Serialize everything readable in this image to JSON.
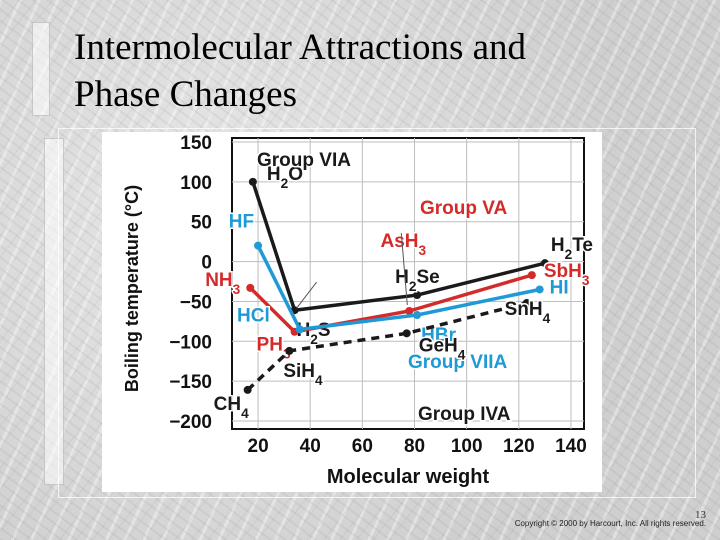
{
  "slide": {
    "title_line1": "Intermolecular Attractions and",
    "title_line2": "Phase Changes",
    "page_number": "13",
    "copyright": "Copyright © 2000 by Harcourt, Inc. All rights reserved."
  },
  "chart_data": {
    "type": "line",
    "xlabel": "Molecular weight",
    "ylabel": "Boiling temperature (°C)",
    "xlim": [
      10,
      145
    ],
    "ylim": [
      -210,
      155
    ],
    "xticks": [
      "20",
      "40",
      "60",
      "80",
      "100",
      "120",
      "140"
    ],
    "xtick_values": [
      20,
      40,
      60,
      80,
      100,
      120,
      140
    ],
    "yticks": [
      "150",
      "100",
      "50",
      "0",
      "−50",
      "−100",
      "−150",
      "−200"
    ],
    "ytick_values": [
      150,
      100,
      50,
      0,
      -50,
      -100,
      -150,
      -200
    ],
    "grid": true,
    "series": [
      {
        "name": "Group VIA",
        "color": "#1a1a1a",
        "dashed": false,
        "points": [
          {
            "x": 18,
            "y": 100,
            "label": "H2O"
          },
          {
            "x": 34,
            "y": -61,
            "label": "H2S"
          },
          {
            "x": 81,
            "y": -42,
            "label": "H2Se"
          },
          {
            "x": 130,
            "y": -2,
            "label": "H2Te"
          }
        ]
      },
      {
        "name": "Group VA",
        "color": "#d42a2a",
        "dashed": false,
        "points": [
          {
            "x": 17,
            "y": -33,
            "label": "NH3"
          },
          {
            "x": 34,
            "y": -88,
            "label": "PH3"
          },
          {
            "x": 78,
            "y": -62,
            "label": "AsH3"
          },
          {
            "x": 125,
            "y": -17,
            "label": "SbH3"
          }
        ]
      },
      {
        "name": "Group VIIA",
        "color": "#1f9ad6",
        "dashed": false,
        "points": [
          {
            "x": 20,
            "y": 20,
            "label": "HF"
          },
          {
            "x": 36,
            "y": -85,
            "label": "HCl"
          },
          {
            "x": 81,
            "y": -67,
            "label": "HBr"
          },
          {
            "x": 128,
            "y": -35,
            "label": "HI"
          }
        ]
      },
      {
        "name": "Group IVA",
        "color": "#1a1a1a",
        "dashed": true,
        "points": [
          {
            "x": 16,
            "y": -161,
            "label": "CH4"
          },
          {
            "x": 32,
            "y": -112,
            "label": "SiH4"
          },
          {
            "x": 77,
            "y": -90,
            "label": "GeH4"
          },
          {
            "x": 123,
            "y": -52,
            "label": "SnH4"
          }
        ]
      }
    ]
  }
}
